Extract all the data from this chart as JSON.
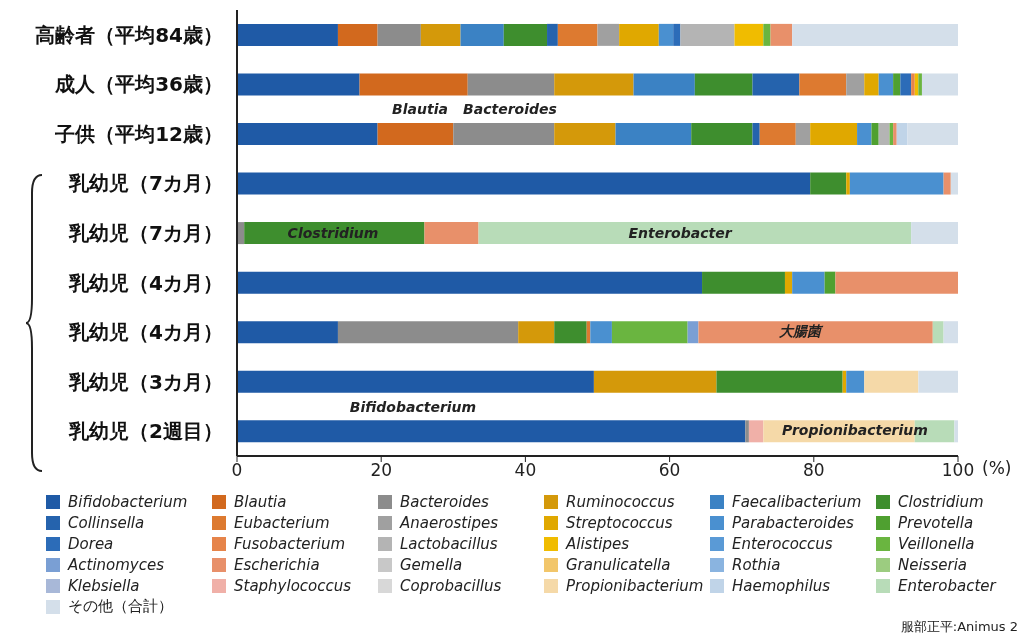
{
  "chart_data": {
    "type": "bar",
    "orientation": "horizontal",
    "stacked": true,
    "xlabel": "(%)",
    "xlim": [
      0,
      100
    ],
    "xticks": [
      0,
      20,
      40,
      60,
      80,
      100
    ],
    "grid": false,
    "legend": "bottom",
    "categories": [
      "高齢者（平均84歳）",
      "成人（平均36歳）",
      "子供（平均12歳）",
      "乳幼児（7カ月）",
      "乳幼児（7カ月）",
      "乳幼児（4カ月）",
      "乳幼児（4カ月）",
      "乳幼児（3カ月）",
      "乳幼児（2週目）"
    ],
    "series": [
      {
        "name": "Bifidobacterium",
        "color": "#1f5aa6",
        "values": [
          14,
          17,
          19.5,
          79.5,
          null,
          64.5,
          14,
          49.5,
          70.5
        ]
      },
      {
        "name": "Blautia",
        "color": "#d2691e",
        "values": [
          5.5,
          15,
          10.5,
          null,
          null,
          null,
          null,
          null,
          null
        ]
      },
      {
        "name": "Bacteroides",
        "color": "#8c8c8c",
        "values": [
          6,
          12,
          14,
          null,
          1,
          null,
          25,
          null,
          0.5
        ]
      },
      {
        "name": "Ruminococcus",
        "color": "#d4990a",
        "values": [
          5.5,
          11,
          8.5,
          null,
          null,
          null,
          5,
          17,
          null
        ]
      },
      {
        "name": "Faecalibacterium",
        "color": "#3b82c4",
        "values": [
          6,
          8.5,
          10.5,
          null,
          null,
          null,
          null,
          null,
          null
        ]
      },
      {
        "name": "Clostridium",
        "color": "#3e8e2e",
        "values": [
          6,
          8,
          8.5,
          5,
          25,
          11.5,
          4.5,
          17.5,
          null
        ]
      },
      {
        "name": "Collinsella",
        "color": "#2563ad",
        "values": [
          1.5,
          6.5,
          1,
          null,
          null,
          null,
          null,
          null,
          null
        ]
      },
      {
        "name": "Eubacterium",
        "color": "#dd7a30",
        "values": [
          5.5,
          6.5,
          5,
          null,
          null,
          null,
          0.5,
          null,
          null
        ]
      },
      {
        "name": "Anaerostipes",
        "color": "#a0a0a0",
        "values": [
          3,
          2.5,
          2,
          null,
          null,
          null,
          null,
          null,
          null
        ]
      },
      {
        "name": "Streptococcus",
        "color": "#e0a800",
        "values": [
          5.5,
          2,
          6.5,
          0.5,
          null,
          1,
          null,
          0.5,
          null
        ]
      },
      {
        "name": "Parabacteroides",
        "color": "#4a90d0",
        "values": [
          2,
          2,
          2,
          13,
          null,
          4.5,
          3,
          2.5,
          null
        ]
      },
      {
        "name": "Prevotella",
        "color": "#4fa030",
        "values": [
          null,
          1,
          1,
          null,
          null,
          1.5,
          null,
          null,
          null
        ]
      },
      {
        "name": "Dorea",
        "color": "#2c6cb8",
        "values": [
          1,
          1.5,
          null,
          null,
          null,
          null,
          null,
          null,
          null
        ]
      },
      {
        "name": "Fusobacterium",
        "color": "#e6844a",
        "values": [
          null,
          0.5,
          null,
          null,
          null,
          null,
          null,
          null,
          null
        ]
      },
      {
        "name": "Lactobacillus",
        "color": "#b4b4b4",
        "values": [
          7.5,
          null,
          1.5,
          null,
          null,
          null,
          null,
          null,
          null
        ]
      },
      {
        "name": "Alistipes",
        "color": "#f0bc00",
        "values": [
          4,
          0.5,
          null,
          null,
          null,
          null,
          null,
          null,
          null
        ]
      },
      {
        "name": "Enterococcus",
        "color": "#5a9ad6",
        "values": [
          null,
          null,
          null,
          null,
          null,
          null,
          null,
          null,
          null
        ]
      },
      {
        "name": "Veillonella",
        "color": "#6ab540",
        "values": [
          1,
          0.5,
          0.5,
          null,
          null,
          null,
          10.5,
          null,
          null
        ]
      },
      {
        "name": "Actinomyces",
        "color": "#7a9fd4",
        "values": [
          null,
          null,
          null,
          null,
          null,
          null,
          1.5,
          null,
          null
        ]
      },
      {
        "name": "Escherichia",
        "color": "#e8906a",
        "values": [
          3,
          null,
          0.5,
          1,
          7.5,
          17,
          32.5,
          null,
          null
        ]
      },
      {
        "name": "Gemella",
        "color": "#c8c8c8",
        "values": [
          null,
          null,
          null,
          null,
          null,
          null,
          null,
          null,
          null
        ]
      },
      {
        "name": "Granulicatella",
        "color": "#f2c66a",
        "values": [
          null,
          null,
          null,
          null,
          null,
          null,
          null,
          null,
          null
        ]
      },
      {
        "name": "Rothia",
        "color": "#8ab4e0",
        "values": [
          null,
          null,
          null,
          null,
          null,
          null,
          null,
          null,
          null
        ]
      },
      {
        "name": "Neisseria",
        "color": "#9ccc80",
        "values": [
          null,
          null,
          null,
          null,
          null,
          null,
          null,
          null,
          null
        ]
      },
      {
        "name": "Klebsiella",
        "color": "#a8b8d8",
        "values": [
          null,
          null,
          null,
          null,
          null,
          null,
          null,
          null,
          null
        ]
      },
      {
        "name": "Staphylococcus",
        "color": "#f0b0a8",
        "values": [
          null,
          null,
          null,
          null,
          null,
          null,
          null,
          null,
          2
        ]
      },
      {
        "name": "Coprobacillus",
        "color": "#d8d8d8",
        "values": [
          null,
          null,
          null,
          null,
          null,
          null,
          null,
          null,
          null
        ]
      },
      {
        "name": "Propionibacterium",
        "color": "#f5d9a8",
        "values": [
          null,
          null,
          null,
          null,
          null,
          null,
          null,
          7.5,
          21
        ]
      },
      {
        "name": "Haemophilus",
        "color": "#c0d4e8",
        "values": [
          null,
          null,
          1.5,
          null,
          null,
          null,
          null,
          null,
          null
        ]
      },
      {
        "name": "Enterobacter",
        "color": "#b8dcb8",
        "values": [
          null,
          null,
          null,
          null,
          60,
          null,
          1.5,
          null,
          5.5
        ]
      },
      {
        "name": "その他（合計）",
        "color": "#d4dfea",
        "values": [
          23,
          5,
          7,
          1,
          6.5,
          null,
          2,
          5.5,
          0.5
        ]
      }
    ],
    "annotations": [
      "Blautia",
      "Bacteroides",
      "Clostridium",
      "Enterobacter",
      "大腸菌",
      "Bifidobacterium",
      "Propionibacterium",
      "服部正平:Animus 2"
    ]
  }
}
